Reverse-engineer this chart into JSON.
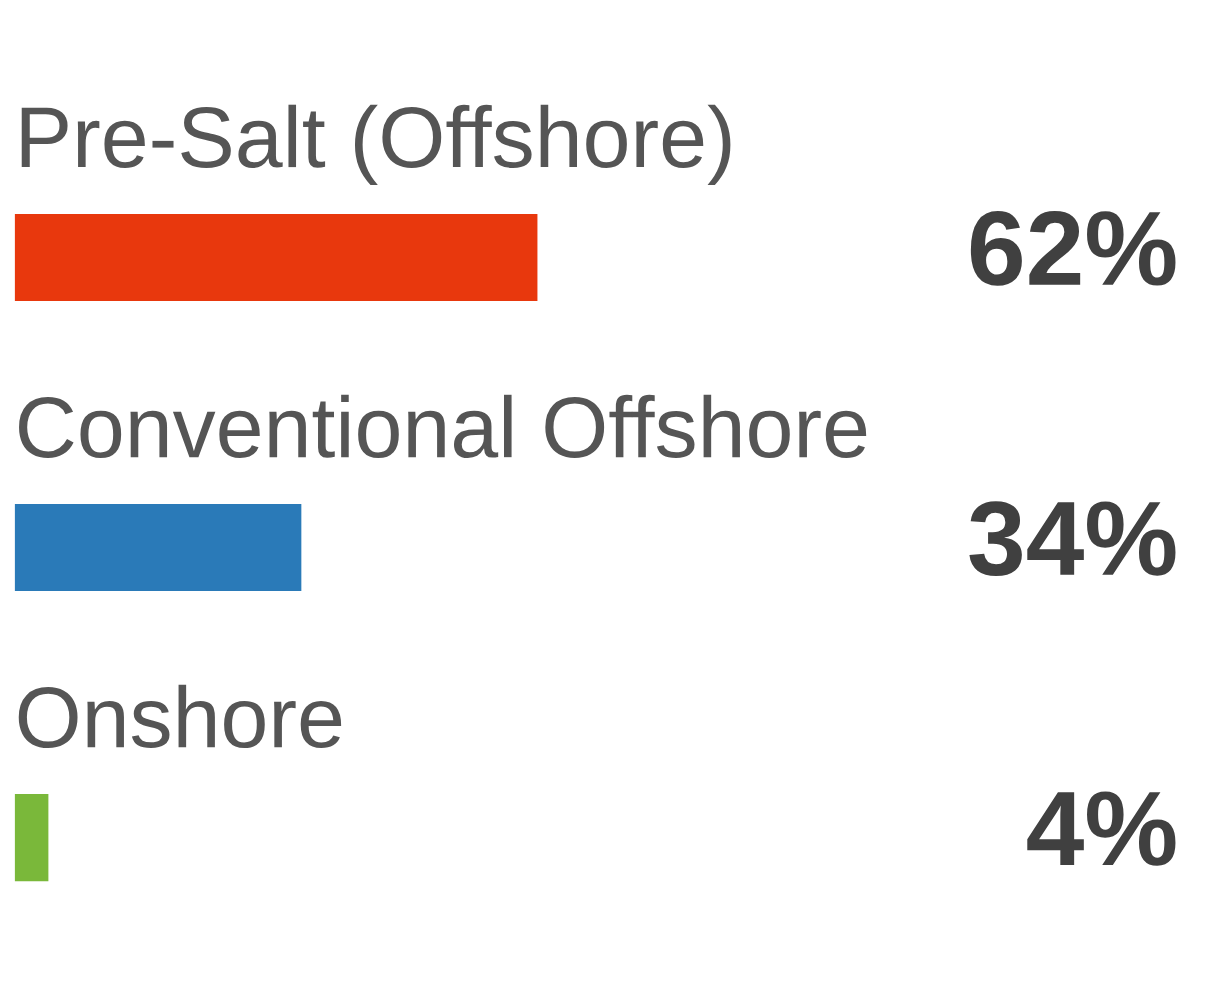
{
  "chart_data": {
    "type": "bar",
    "orientation": "horizontal",
    "categories": [
      "Pre-Salt (Offshore)",
      "Conventional Offshore",
      "Onshore"
    ],
    "values": [
      62,
      34,
      4
    ],
    "colors": [
      "#e8380d",
      "#2a7ab8",
      "#7ab83a"
    ],
    "value_labels": [
      "62%",
      "34%",
      "4%"
    ]
  }
}
